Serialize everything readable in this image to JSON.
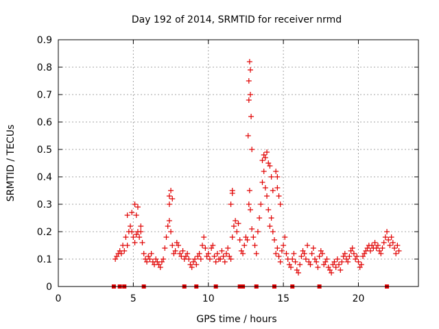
{
  "chart_data": {
    "type": "scatter",
    "title": "Day 192 of 2014, SRMTID for receiver nrmd",
    "xlabel": "GPS time / hours",
    "ylabel": "SRMTID / TECUs",
    "xlim": [
      0,
      24
    ],
    "ylim": [
      0,
      0.9
    ],
    "x_ticks": [
      0,
      5,
      10,
      15,
      20
    ],
    "y_ticks": [
      0,
      0.1,
      0.2,
      0.3,
      0.4,
      0.5,
      0.6,
      0.7,
      0.8,
      0.9
    ],
    "x_tick_labels": [
      "0",
      "5",
      "10",
      "15",
      "20"
    ],
    "y_tick_labels": [
      "0",
      "0.1",
      "0.2",
      "0.3",
      "0.4",
      "0.5",
      "0.6",
      "0.7",
      "0.8",
      "0.9"
    ],
    "grid": true,
    "marker": "+",
    "series": [
      {
        "name": "SRMTID",
        "color": "#e00000",
        "x": [
          3.8,
          3.9,
          4.0,
          4.1,
          4.2,
          4.3,
          4.4,
          4.5,
          4.6,
          4.7,
          4.8,
          4.9,
          5.0,
          5.1,
          5.2,
          5.3,
          5.4,
          5.5,
          5.6,
          5.7,
          5.8,
          5.9,
          6.0,
          6.1,
          6.2,
          6.3,
          6.4,
          6.5,
          6.6,
          6.7,
          6.8,
          6.9,
          7.0,
          7.1,
          7.2,
          7.3,
          7.4,
          7.5,
          7.6,
          7.7,
          7.8,
          7.9,
          8.0,
          8.1,
          8.2,
          8.3,
          8.4,
          8.5,
          8.6,
          8.7,
          8.8,
          8.9,
          9.0,
          9.1,
          9.2,
          9.3,
          9.4,
          9.5,
          9.6,
          9.7,
          9.8,
          9.9,
          10.0,
          10.1,
          10.2,
          10.3,
          10.4,
          10.5,
          10.6,
          10.7,
          10.8,
          10.9,
          11.0,
          11.1,
          11.2,
          11.3,
          11.4,
          11.5,
          11.6,
          11.7,
          11.8,
          11.9,
          12.0,
          12.1,
          12.2,
          12.3,
          12.4,
          12.5,
          12.6,
          12.7,
          12.75,
          12.8,
          12.9,
          13.0,
          13.1,
          13.2,
          13.3,
          13.4,
          13.5,
          13.6,
          13.7,
          13.8,
          13.9,
          14.0,
          14.1,
          14.2,
          14.3,
          14.4,
          14.5,
          14.6,
          14.7,
          14.8,
          14.9,
          15.0,
          15.1,
          15.2,
          15.3,
          15.4,
          15.5,
          15.6,
          15.7,
          15.8,
          15.9,
          16.0,
          16.1,
          16.2,
          16.3,
          16.4,
          16.5,
          16.6,
          16.7,
          16.8,
          16.9,
          17.0,
          17.1,
          17.2,
          17.3,
          17.4,
          17.5,
          17.6,
          17.7,
          17.8,
          17.9,
          18.0,
          18.1,
          18.2,
          18.3,
          18.4,
          18.5,
          18.6,
          18.7,
          18.8,
          18.9,
          19.0,
          19.1,
          19.2,
          19.3,
          19.4,
          19.5,
          19.6,
          19.7,
          19.8,
          19.9,
          20.0,
          20.1,
          20.2,
          20.3,
          20.4,
          20.5,
          20.6,
          20.7,
          20.8,
          20.9,
          21.0,
          21.1,
          21.2,
          21.3,
          21.4,
          21.5,
          21.6,
          21.7,
          21.8,
          21.9,
          22.0,
          22.1,
          22.2,
          22.3,
          22.4,
          22.5,
          22.6,
          22.7,
          4.6,
          4.9,
          5.1,
          5.2,
          5.3,
          5.5,
          7.4,
          7.5,
          7.6,
          7.4,
          11.5,
          11.6,
          11.6,
          12.65,
          12.7,
          12.7,
          12.75,
          12.8,
          12.8,
          12.85,
          12.9,
          13.6,
          13.7,
          13.8,
          13.9,
          14.0,
          14.1,
          14.2,
          14.3,
          14.5,
          14.6,
          14.7,
          14.8,
          14.6,
          3.7,
          4.1,
          4.4,
          5.7,
          8.4,
          9.2,
          10.5,
          12.1,
          12.3,
          13.2,
          14.4,
          15.6,
          17.4,
          21.9
        ],
        "y": [
          0.1,
          0.11,
          0.12,
          0.13,
          0.12,
          0.15,
          0.13,
          0.18,
          0.15,
          0.2,
          0.22,
          0.2,
          0.18,
          0.16,
          0.19,
          0.2,
          0.18,
          0.2,
          0.16,
          0.12,
          0.1,
          0.09,
          0.11,
          0.1,
          0.12,
          0.09,
          0.08,
          0.1,
          0.09,
          0.08,
          0.07,
          0.09,
          0.1,
          0.14,
          0.18,
          0.22,
          0.24,
          0.2,
          0.15,
          0.12,
          0.13,
          0.16,
          0.15,
          0.12,
          0.11,
          0.13,
          0.1,
          0.11,
          0.12,
          0.1,
          0.08,
          0.07,
          0.09,
          0.1,
          0.08,
          0.11,
          0.12,
          0.1,
          0.15,
          0.18,
          0.14,
          0.11,
          0.12,
          0.1,
          0.14,
          0.15,
          0.11,
          0.09,
          0.12,
          0.1,
          0.1,
          0.13,
          0.11,
          0.09,
          0.12,
          0.14,
          0.11,
          0.1,
          0.18,
          0.22,
          0.24,
          0.2,
          0.23,
          0.17,
          0.13,
          0.12,
          0.15,
          0.18,
          0.17,
          0.3,
          0.35,
          0.28,
          0.21,
          0.18,
          0.15,
          0.12,
          0.2,
          0.25,
          0.3,
          0.38,
          0.42,
          0.36,
          0.33,
          0.28,
          0.22,
          0.25,
          0.2,
          0.17,
          0.12,
          0.14,
          0.11,
          0.09,
          0.13,
          0.15,
          0.18,
          0.12,
          0.1,
          0.08,
          0.07,
          0.1,
          0.12,
          0.09,
          0.06,
          0.05,
          0.08,
          0.11,
          0.13,
          0.12,
          0.1,
          0.15,
          0.09,
          0.08,
          0.12,
          0.14,
          0.1,
          0.09,
          0.07,
          0.11,
          0.13,
          0.12,
          0.08,
          0.09,
          0.1,
          0.07,
          0.06,
          0.05,
          0.08,
          0.09,
          0.07,
          0.1,
          0.08,
          0.06,
          0.09,
          0.11,
          0.12,
          0.1,
          0.09,
          0.11,
          0.13,
          0.14,
          0.12,
          0.1,
          0.11,
          0.09,
          0.07,
          0.08,
          0.11,
          0.12,
          0.13,
          0.14,
          0.15,
          0.13,
          0.15,
          0.14,
          0.16,
          0.14,
          0.15,
          0.13,
          0.12,
          0.14,
          0.16,
          0.18,
          0.2,
          0.17,
          0.15,
          0.18,
          0.16,
          0.14,
          0.12,
          0.15,
          0.13,
          0.26,
          0.27,
          0.3,
          0.26,
          0.29,
          0.22,
          0.33,
          0.35,
          0.32,
          0.3,
          0.3,
          0.35,
          0.34,
          0.55,
          0.68,
          0.75,
          0.82,
          0.79,
          0.7,
          0.62,
          0.5,
          0.46,
          0.48,
          0.47,
          0.49,
          0.45,
          0.44,
          0.4,
          0.35,
          0.42,
          0.36,
          0.33,
          0.3,
          0.4,
          0,
          0,
          0,
          0,
          0,
          0,
          0,
          0,
          0,
          0,
          0,
          0,
          0,
          0
        ]
      }
    ]
  }
}
